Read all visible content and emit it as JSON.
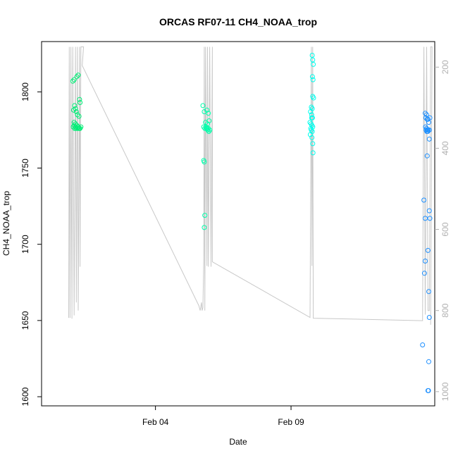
{
  "chart_data": {
    "type": "scatter",
    "title": "ORCAS RF07-11 CH4_NOAA_trop",
    "xlabel": "Date",
    "ylabel": "CH4_NOAA_trop",
    "x_ticks": [
      {
        "label": "Feb 04",
        "day": 4.0
      },
      {
        "label": "Feb 09",
        "day": 9.0
      }
    ],
    "xlim_days": [
      -0.2,
      14.3
    ],
    "ylim": [
      1594,
      1833
    ],
    "y_ticks": [
      1600,
      1650,
      1700,
      1750,
      1800
    ],
    "right_axis": {
      "ylim": [
        1035,
        137
      ],
      "ticks": [
        200,
        400,
        600,
        800,
        1000
      ]
    },
    "grid": false,
    "legend": "none",
    "colors": {
      "rf07": "#00ee76",
      "rf08": "#00ffaa",
      "rf09": "#00ffee",
      "rf10": "#1e90ff",
      "pressure_line": "#c8c8c8",
      "frame": "#000000"
    },
    "series": [
      {
        "color_key": "rf07",
        "points": [
          [
            0.95,
            1807
          ],
          [
            1.0,
            1808
          ],
          [
            1.1,
            1810
          ],
          [
            1.15,
            1811
          ],
          [
            1.02,
            1791
          ],
          [
            1.05,
            1789
          ],
          [
            0.98,
            1788
          ],
          [
            1.08,
            1787
          ],
          [
            1.12,
            1785
          ],
          [
            1.2,
            1795
          ],
          [
            1.22,
            1793
          ],
          [
            1.18,
            1784
          ],
          [
            1.0,
            1780
          ],
          [
            1.05,
            1779
          ],
          [
            1.1,
            1778
          ],
          [
            1.15,
            1777
          ],
          [
            1.2,
            1776
          ],
          [
            1.25,
            1777
          ],
          [
            0.97,
            1777
          ],
          [
            1.02,
            1776
          ],
          [
            1.07,
            1776
          ],
          [
            1.12,
            1776
          ],
          [
            1.17,
            1776
          ],
          [
            1.22,
            1776
          ],
          [
            1.0,
            1778
          ],
          [
            1.06,
            1777
          ],
          [
            1.14,
            1777
          ]
        ]
      },
      {
        "color_key": "rf08",
        "points": [
          [
            5.75,
            1791
          ],
          [
            5.8,
            1787
          ],
          [
            5.9,
            1788
          ],
          [
            5.95,
            1786
          ],
          [
            5.85,
            1780
          ],
          [
            5.92,
            1779
          ],
          [
            5.98,
            1781
          ],
          [
            5.78,
            1777
          ],
          [
            5.82,
            1776
          ],
          [
            5.88,
            1776
          ],
          [
            5.93,
            1775
          ],
          [
            5.97,
            1774
          ],
          [
            6.0,
            1775
          ],
          [
            5.86,
            1777
          ],
          [
            5.78,
            1755
          ],
          [
            5.8,
            1754
          ],
          [
            5.82,
            1719
          ],
          [
            5.8,
            1711
          ],
          [
            5.9,
            1776
          ],
          [
            5.95,
            1776
          ]
        ]
      },
      {
        "color_key": "rf09",
        "points": [
          [
            9.78,
            1824
          ],
          [
            9.8,
            1821
          ],
          [
            9.82,
            1818
          ],
          [
            9.79,
            1810
          ],
          [
            9.81,
            1808
          ],
          [
            9.8,
            1797
          ],
          [
            9.83,
            1796
          ],
          [
            9.75,
            1790
          ],
          [
            9.78,
            1789
          ],
          [
            9.72,
            1787
          ],
          [
            9.76,
            1785
          ],
          [
            9.79,
            1783
          ],
          [
            9.7,
            1780
          ],
          [
            9.74,
            1779
          ],
          [
            9.77,
            1778
          ],
          [
            9.8,
            1777
          ],
          [
            9.73,
            1776
          ],
          [
            9.75,
            1775
          ],
          [
            9.78,
            1774
          ],
          [
            9.71,
            1772
          ],
          [
            9.77,
            1770
          ],
          [
            9.8,
            1766
          ],
          [
            9.81,
            1760
          ],
          [
            9.76,
            1783
          ]
        ]
      },
      {
        "color_key": "rf10",
        "points": [
          [
            13.95,
            1786
          ],
          [
            14.0,
            1785
          ],
          [
            13.97,
            1783
          ],
          [
            14.02,
            1782
          ],
          [
            14.05,
            1782
          ],
          [
            14.12,
            1783
          ],
          [
            14.08,
            1780
          ],
          [
            13.96,
            1777
          ],
          [
            14.0,
            1776
          ],
          [
            14.03,
            1775
          ],
          [
            14.06,
            1775
          ],
          [
            14.1,
            1775
          ],
          [
            13.98,
            1775
          ],
          [
            14.01,
            1774
          ],
          [
            14.04,
            1774
          ],
          [
            14.1,
            1769
          ],
          [
            14.02,
            1758
          ],
          [
            13.9,
            1729
          ],
          [
            14.1,
            1722
          ],
          [
            13.95,
            1717
          ],
          [
            14.12,
            1717
          ],
          [
            14.05,
            1696
          ],
          [
            13.95,
            1689
          ],
          [
            13.92,
            1681
          ],
          [
            14.08,
            1669
          ],
          [
            14.1,
            1652
          ],
          [
            13.85,
            1634
          ],
          [
            14.08,
            1623
          ],
          [
            14.05,
            1604
          ],
          [
            14.07,
            1604
          ]
        ]
      }
    ],
    "pressure_line": [
      [
        0.8,
        818
      ],
      [
        0.82,
        150
      ],
      [
        0.85,
        818
      ],
      [
        0.88,
        150
      ],
      [
        0.92,
        820
      ],
      [
        0.95,
        150
      ],
      [
        1.0,
        812
      ],
      [
        1.05,
        150
      ],
      [
        1.08,
        780
      ],
      [
        1.12,
        150
      ],
      [
        1.15,
        800
      ],
      [
        1.2,
        150
      ],
      [
        1.22,
        692
      ],
      [
        1.25,
        150
      ],
      [
        1.3,
        150
      ],
      [
        1.35,
        150
      ],
      [
        1.3,
        196
      ],
      [
        5.6,
        788
      ],
      [
        5.65,
        800
      ],
      [
        5.7,
        780
      ],
      [
        5.72,
        800
      ],
      [
        5.75,
        793
      ],
      [
        5.78,
        680
      ],
      [
        5.8,
        150
      ],
      [
        5.82,
        800
      ],
      [
        5.85,
        150
      ],
      [
        5.9,
        690
      ],
      [
        5.92,
        150
      ],
      [
        5.95,
        692
      ],
      [
        6.0,
        150
      ],
      [
        6.05,
        692
      ],
      [
        6.1,
        150
      ],
      [
        6.1,
        680
      ],
      [
        9.7,
        817
      ],
      [
        9.75,
        150
      ],
      [
        9.77,
        690
      ],
      [
        9.8,
        150
      ],
      [
        9.82,
        819
      ],
      [
        13.85,
        825
      ],
      [
        13.9,
        150
      ],
      [
        13.95,
        810
      ],
      [
        14.0,
        150
      ],
      [
        14.05,
        800
      ],
      [
        14.1,
        800
      ],
      [
        14.15,
        150
      ],
      [
        14.2,
        150
      ],
      [
        14.15,
        835
      ]
    ]
  }
}
